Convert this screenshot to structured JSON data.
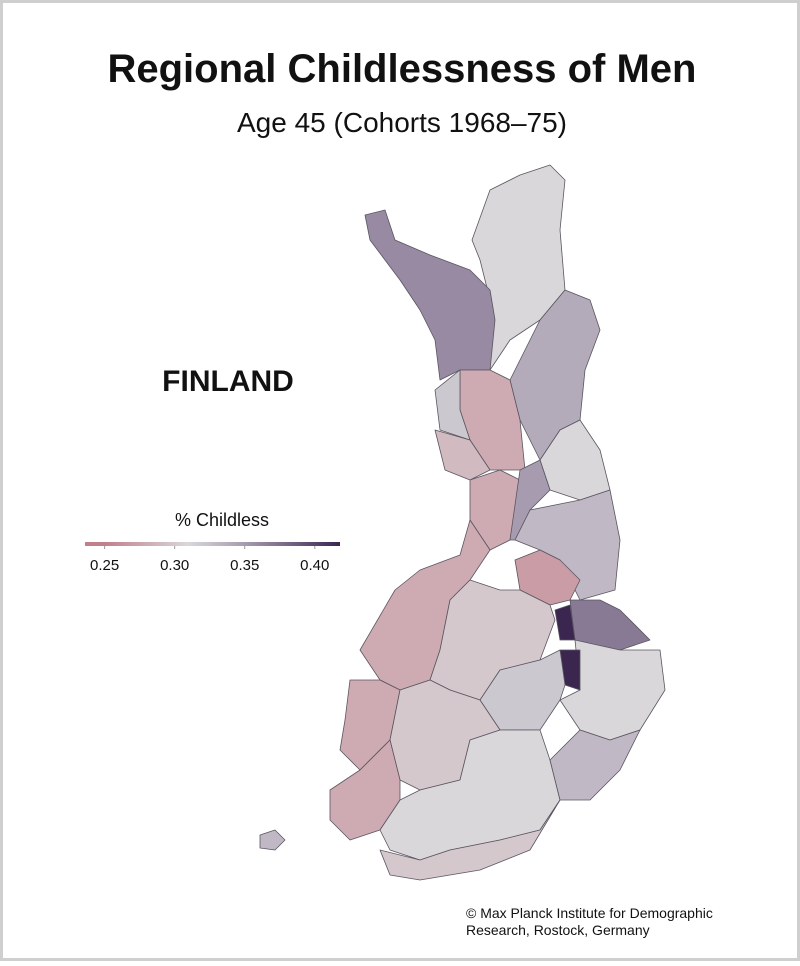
{
  "header": {
    "title": "Regional Childlessness of Men",
    "subtitle": "Age 45 (Cohorts 1968–75)"
  },
  "map": {
    "country_label": "FINLAND",
    "regions": [
      0.31,
      0.36,
      0.34,
      0.28,
      0.32,
      0.29,
      0.31,
      0.28,
      0.35,
      0.33,
      0.27,
      0.28,
      0.3,
      0.37,
      0.42,
      0.31,
      0.42,
      0.32,
      0.42,
      0.28,
      0.3,
      0.28,
      0.31,
      0.33,
      0.3,
      0.33
    ]
  },
  "legend": {
    "title": "% Childless",
    "range": [
      0.236,
      0.418
    ],
    "ticks": [
      0.25,
      {
        "value": 0.3,
        "label": "0.30"
      },
      0.35,
      {
        "value": 0.4,
        "label": "0.40"
      }
    ],
    "colors": [
      {
        "value": 0.25,
        "color": "#c27f8b"
      },
      {
        "value": 0.31,
        "color": "#d9d7da"
      },
      {
        "value": 0.35,
        "color": "#a79bb0"
      },
      {
        "value": 0.42,
        "color": "#3b2650"
      }
    ]
  },
  "credit": [
    "© Max Planck Institute for Demographic",
    "Research, Rostock, Germany"
  ]
}
